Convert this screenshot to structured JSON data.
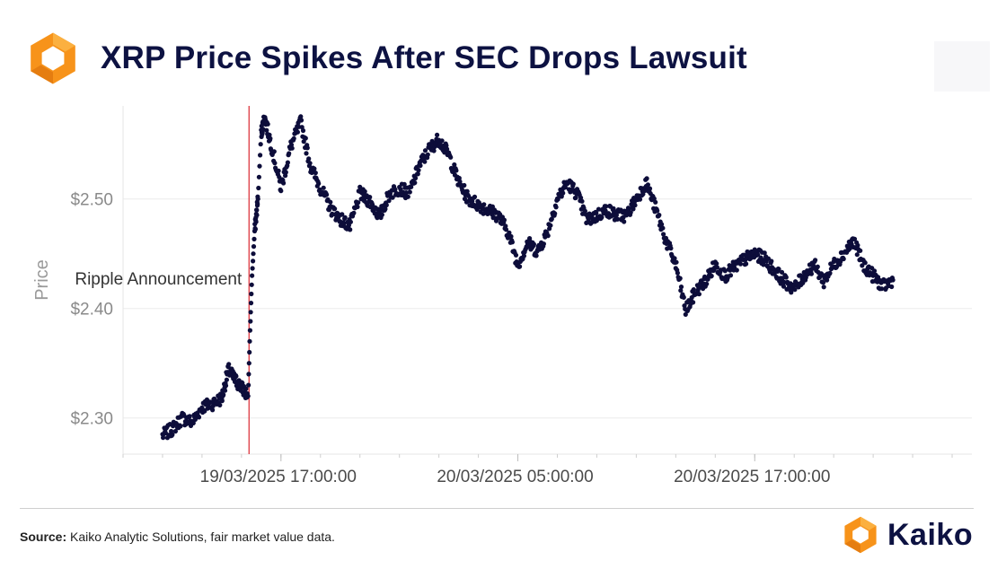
{
  "header": {
    "title": "XRP Price Spikes After SEC Drops Lawsuit",
    "logo_icon": "kaiko-hexagon-logo-icon"
  },
  "colors": {
    "title": "#0d1242",
    "points": "#0d0d3a",
    "event_line": "#e0454e",
    "grid": "#ececec",
    "logo_orange": "#f7931a",
    "logo_orange_light": "#fbb040"
  },
  "chart_data": {
    "type": "scatter",
    "title": "XRP Price Spikes After SEC Drops Lawsuit",
    "xlabel": "",
    "ylabel": "Price",
    "x_axis": {
      "type": "datetime",
      "range": [
        "2025-03-19 09:00:00",
        "2025-03-21 04:00:00"
      ],
      "tick_labels": [
        "19/03/2025 17:00:00",
        "20/03/2025 05:00:00",
        "20/03/2025 17:00:00"
      ],
      "tick_values": [
        "2025-03-19 17:00:00",
        "2025-03-20 05:00:00",
        "2025-03-20 17:00:00"
      ]
    },
    "y_axis": {
      "range": [
        2.267,
        2.585
      ],
      "tick_values": [
        2.3,
        2.4,
        2.5
      ],
      "tick_labels": [
        "$2.30",
        "$2.40",
        "$2.50"
      ]
    },
    "grid": "horizontal",
    "legend": "none",
    "annotations": [
      {
        "text": "Ripple Announcement",
        "x": "2025-03-19 15:23:00",
        "type": "vertical-line"
      }
    ],
    "series": [
      {
        "points": [
          [
            "2025-03-19 11:00",
            2.284
          ],
          [
            "2025-03-19 11:30",
            2.29
          ],
          [
            "2025-03-19 12:00",
            2.3
          ],
          [
            "2025-03-19 12:30",
            2.296
          ],
          [
            "2025-03-19 13:00",
            2.31
          ],
          [
            "2025-03-19 13:30",
            2.313
          ],
          [
            "2025-03-19 14:00",
            2.318
          ],
          [
            "2025-03-19 14:20",
            2.344
          ],
          [
            "2025-03-19 14:40",
            2.335
          ],
          [
            "2025-03-19 15:00",
            2.328
          ],
          [
            "2025-03-19 15:20",
            2.32
          ],
          [
            "2025-03-19 15:26",
            2.38
          ],
          [
            "2025-03-19 15:32",
            2.43
          ],
          [
            "2025-03-19 15:40",
            2.47
          ],
          [
            "2025-03-19 15:50",
            2.5
          ],
          [
            "2025-03-19 16:00",
            2.56
          ],
          [
            "2025-03-19 16:10",
            2.575
          ],
          [
            "2025-03-19 16:30",
            2.55
          ],
          [
            "2025-03-19 17:00",
            2.51
          ],
          [
            "2025-03-19 17:30",
            2.548
          ],
          [
            "2025-03-19 18:00",
            2.57
          ],
          [
            "2025-03-19 18:30",
            2.53
          ],
          [
            "2025-03-19 19:00",
            2.51
          ],
          [
            "2025-03-19 19:30",
            2.492
          ],
          [
            "2025-03-19 20:00",
            2.482
          ],
          [
            "2025-03-19 20:30",
            2.475
          ],
          [
            "2025-03-19 21:00",
            2.505
          ],
          [
            "2025-03-19 21:30",
            2.498
          ],
          [
            "2025-03-19 22:00",
            2.484
          ],
          [
            "2025-03-19 22:30",
            2.505
          ],
          [
            "2025-03-19 23:00",
            2.51
          ],
          [
            "2025-03-19 23:30",
            2.505
          ],
          [
            "2025-03-20 00:00",
            2.53
          ],
          [
            "2025-03-20 00:30",
            2.545
          ],
          [
            "2025-03-20 01:00",
            2.555
          ],
          [
            "2025-03-20 01:30",
            2.54
          ],
          [
            "2025-03-20 02:00",
            2.515
          ],
          [
            "2025-03-20 02:30",
            2.5
          ],
          [
            "2025-03-20 03:00",
            2.495
          ],
          [
            "2025-03-20 03:30",
            2.49
          ],
          [
            "2025-03-20 04:00",
            2.485
          ],
          [
            "2025-03-20 04:30",
            2.47
          ],
          [
            "2025-03-20 05:00",
            2.44
          ],
          [
            "2025-03-20 05:30",
            2.46
          ],
          [
            "2025-03-20 06:00",
            2.452
          ],
          [
            "2025-03-20 06:30",
            2.47
          ],
          [
            "2025-03-20 07:00",
            2.5
          ],
          [
            "2025-03-20 07:30",
            2.515
          ],
          [
            "2025-03-20 08:00",
            2.505
          ],
          [
            "2025-03-20 08:30",
            2.48
          ],
          [
            "2025-03-20 09:00",
            2.485
          ],
          [
            "2025-03-20 09:30",
            2.49
          ],
          [
            "2025-03-20 10:00",
            2.485
          ],
          [
            "2025-03-20 10:30",
            2.485
          ],
          [
            "2025-03-20 11:00",
            2.5
          ],
          [
            "2025-03-20 11:30",
            2.515
          ],
          [
            "2025-03-20 12:00",
            2.49
          ],
          [
            "2025-03-20 12:30",
            2.462
          ],
          [
            "2025-03-20 13:00",
            2.44
          ],
          [
            "2025-03-20 13:30",
            2.398
          ],
          [
            "2025-03-20 14:00",
            2.415
          ],
          [
            "2025-03-20 14:30",
            2.425
          ],
          [
            "2025-03-20 15:00",
            2.44
          ],
          [
            "2025-03-20 15:30",
            2.43
          ],
          [
            "2025-03-20 16:00",
            2.438
          ],
          [
            "2025-03-20 16:30",
            2.445
          ],
          [
            "2025-03-20 17:00",
            2.45
          ],
          [
            "2025-03-20 17:30",
            2.445
          ],
          [
            "2025-03-20 18:00",
            2.435
          ],
          [
            "2025-03-20 18:30",
            2.425
          ],
          [
            "2025-03-20 19:00",
            2.418
          ],
          [
            "2025-03-20 19:30",
            2.43
          ],
          [
            "2025-03-20 20:00",
            2.44
          ],
          [
            "2025-03-20 20:30",
            2.425
          ],
          [
            "2025-03-20 21:00",
            2.44
          ],
          [
            "2025-03-20 21:30",
            2.45
          ],
          [
            "2025-03-20 22:00",
            2.462
          ],
          [
            "2025-03-20 22:30",
            2.44
          ],
          [
            "2025-03-20 23:00",
            2.43
          ],
          [
            "2025-03-20 23:30",
            2.42
          ],
          [
            "2025-03-21 00:00",
            2.426
          ]
        ]
      }
    ]
  },
  "footer": {
    "source_label": "Source:",
    "source_text": " Kaiko Analytic Solutions, fair market value data.",
    "brand_name": "Kaiko",
    "brand_icon": "kaiko-hexagon-logo-icon"
  }
}
